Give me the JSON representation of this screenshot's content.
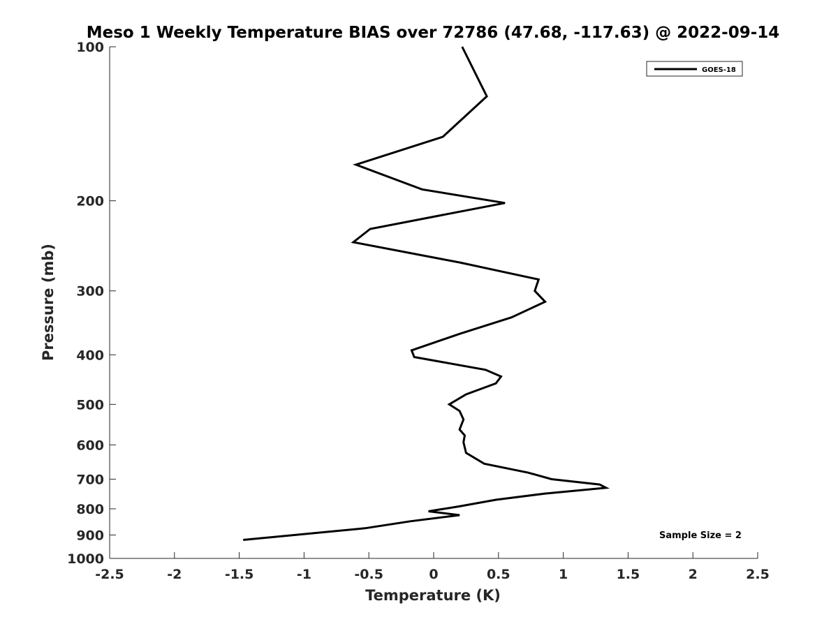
{
  "chart_data": {
    "type": "line",
    "title": "Meso 1 Weekly Temperature BIAS over 72786 (47.68, -117.63) @ 2022-09-14",
    "xlabel": "Temperature (K)",
    "ylabel": "Pressure (mb)",
    "xlim": [
      -2.5,
      2.5
    ],
    "ylim": [
      1000,
      100
    ],
    "y_scale": "log",
    "y_reversed": true,
    "grid": false,
    "legend_position": "top-right",
    "x_ticks": [
      -2.5,
      -2,
      -1.5,
      -1,
      -0.5,
      0,
      0.5,
      1,
      1.5,
      2,
      2.5
    ],
    "x_tick_labels": [
      "-2.5",
      "-2",
      "-1.5",
      "-1",
      "-0.5",
      "0",
      "0.5",
      "1",
      "1.5",
      "2",
      "2.5"
    ],
    "y_ticks": [
      100,
      200,
      300,
      400,
      500,
      600,
      700,
      800,
      900,
      1000
    ],
    "y_tick_labels": [
      "100",
      "200",
      "300",
      "400",
      "500",
      "600",
      "700",
      "800",
      "900",
      "1000"
    ],
    "annotation": "Sample Size = 2",
    "series": [
      {
        "name": "GOES-18",
        "color": "#000000",
        "x": [
          0.22,
          0.41,
          0.07,
          -0.6,
          -0.09,
          0.55,
          -0.49,
          -0.62,
          0.2,
          0.81,
          0.78,
          0.86,
          0.6,
          0.2,
          -0.17,
          -0.15,
          0.4,
          0.52,
          0.48,
          0.25,
          0.12,
          0.2,
          0.23,
          0.2,
          0.24,
          0.23,
          0.25,
          0.39,
          0.73,
          0.91,
          1.28,
          1.33,
          0.86,
          0.48,
          0.2,
          -0.04,
          0.2,
          -0.18,
          -0.53,
          -1.47
        ],
        "y": [
          100,
          125,
          150,
          170,
          190,
          202,
          227,
          241,
          264,
          285,
          300,
          315,
          338,
          364,
          392,
          404,
          428,
          441,
          455,
          478,
          500,
          515,
          535,
          560,
          575,
          593,
          622,
          653,
          680,
          700,
          717,
          728,
          747,
          768,
          791,
          809,
          823,
          846,
          873,
          920
        ]
      }
    ]
  }
}
